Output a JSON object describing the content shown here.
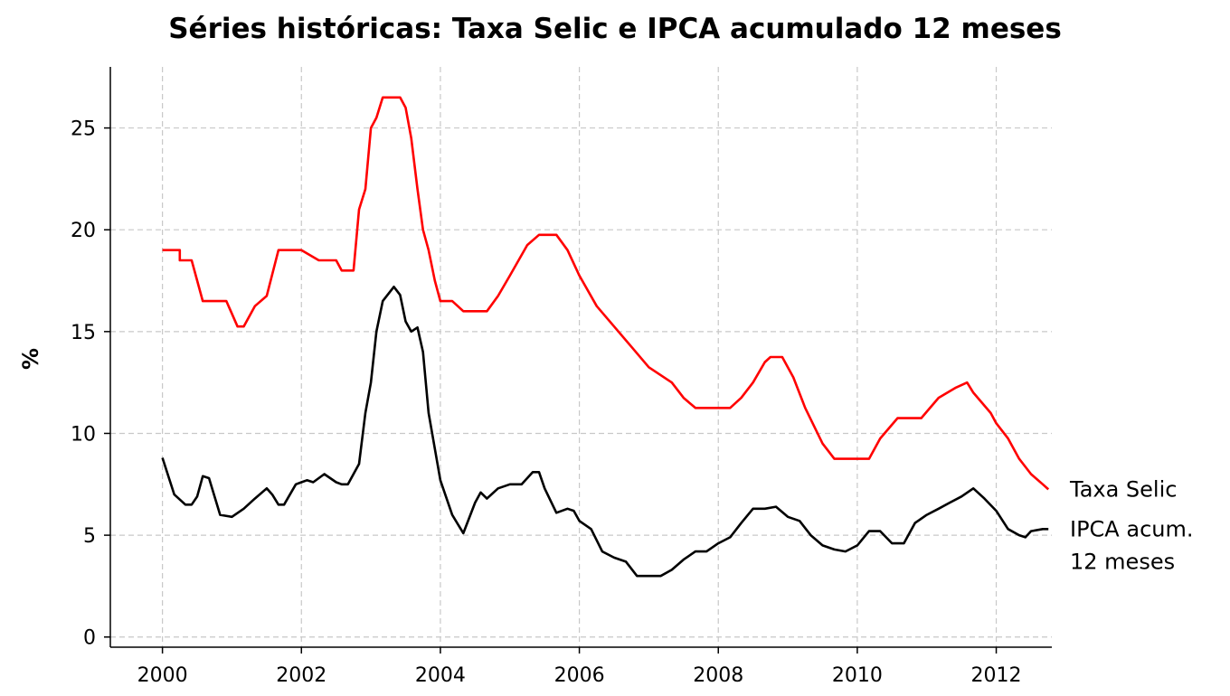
{
  "chart_data": {
    "type": "line",
    "title": "Séries históricas: Taxa Selic e IPCA acumulado 12 meses",
    "xlabel": "",
    "ylabel": "%",
    "xlim": [
      1999.25,
      2012.8
    ],
    "ylim": [
      -0.5,
      28
    ],
    "x_ticks": [
      2000,
      2002,
      2004,
      2006,
      2008,
      2010,
      2012
    ],
    "y_ticks": [
      0,
      5,
      10,
      15,
      20,
      25
    ],
    "grid": true,
    "legend": "end-of-line labels (right)",
    "series": [
      {
        "name": "Taxa Selic",
        "label_lines": [
          "Taxa Selic"
        ],
        "color": "#ff0000",
        "points": [
          [
            2000.0,
            19.0
          ],
          [
            2000.25,
            19.0
          ],
          [
            2000.25,
            18.5
          ],
          [
            2000.42,
            18.5
          ],
          [
            2000.58,
            16.5
          ],
          [
            2000.92,
            16.5
          ],
          [
            2001.08,
            15.25
          ],
          [
            2001.17,
            15.25
          ],
          [
            2001.33,
            16.25
          ],
          [
            2001.5,
            16.75
          ],
          [
            2001.67,
            19.0
          ],
          [
            2002.0,
            19.0
          ],
          [
            2002.25,
            18.5
          ],
          [
            2002.5,
            18.5
          ],
          [
            2002.58,
            18.0
          ],
          [
            2002.75,
            18.0
          ],
          [
            2002.83,
            21.0
          ],
          [
            2002.92,
            22.0
          ],
          [
            2003.0,
            25.0
          ],
          [
            2003.08,
            25.5
          ],
          [
            2003.17,
            26.5
          ],
          [
            2003.42,
            26.5
          ],
          [
            2003.5,
            26.0
          ],
          [
            2003.58,
            24.5
          ],
          [
            2003.67,
            22.0
          ],
          [
            2003.75,
            20.0
          ],
          [
            2003.83,
            19.0
          ],
          [
            2003.92,
            17.5
          ],
          [
            2004.0,
            16.5
          ],
          [
            2004.17,
            16.5
          ],
          [
            2004.33,
            16.0
          ],
          [
            2004.67,
            16.0
          ],
          [
            2004.83,
            16.75
          ],
          [
            2005.0,
            17.75
          ],
          [
            2005.25,
            19.25
          ],
          [
            2005.42,
            19.75
          ],
          [
            2005.67,
            19.75
          ],
          [
            2005.83,
            19.0
          ],
          [
            2006.0,
            17.75
          ],
          [
            2006.25,
            16.25
          ],
          [
            2006.5,
            15.25
          ],
          [
            2006.75,
            14.25
          ],
          [
            2007.0,
            13.25
          ],
          [
            2007.33,
            12.5
          ],
          [
            2007.5,
            11.75
          ],
          [
            2007.67,
            11.25
          ],
          [
            2008.17,
            11.25
          ],
          [
            2008.33,
            11.75
          ],
          [
            2008.5,
            12.5
          ],
          [
            2008.67,
            13.5
          ],
          [
            2008.75,
            13.75
          ],
          [
            2008.92,
            13.75
          ],
          [
            2009.08,
            12.75
          ],
          [
            2009.25,
            11.25
          ],
          [
            2009.5,
            9.5
          ],
          [
            2009.67,
            8.75
          ],
          [
            2010.17,
            8.75
          ],
          [
            2010.33,
            9.75
          ],
          [
            2010.58,
            10.75
          ],
          [
            2010.92,
            10.75
          ],
          [
            2011.17,
            11.75
          ],
          [
            2011.42,
            12.25
          ],
          [
            2011.58,
            12.5
          ],
          [
            2011.67,
            12.0
          ],
          [
            2011.92,
            11.0
          ],
          [
            2012.0,
            10.5
          ],
          [
            2012.17,
            9.75
          ],
          [
            2012.33,
            8.75
          ],
          [
            2012.5,
            8.0
          ],
          [
            2012.67,
            7.5
          ],
          [
            2012.75,
            7.25
          ]
        ]
      },
      {
        "name": "IPCA acum. 12 meses",
        "label_lines": [
          "IPCA acum.",
          "12 meses"
        ],
        "color": "#000000",
        "points": [
          [
            2000.0,
            8.8
          ],
          [
            2000.17,
            7.0
          ],
          [
            2000.33,
            6.5
          ],
          [
            2000.42,
            6.5
          ],
          [
            2000.5,
            6.9
          ],
          [
            2000.58,
            7.9
          ],
          [
            2000.67,
            7.8
          ],
          [
            2000.83,
            6.0
          ],
          [
            2001.0,
            5.9
          ],
          [
            2001.17,
            6.3
          ],
          [
            2001.33,
            6.8
          ],
          [
            2001.5,
            7.3
          ],
          [
            2001.58,
            7.0
          ],
          [
            2001.67,
            6.5
          ],
          [
            2001.75,
            6.5
          ],
          [
            2001.92,
            7.5
          ],
          [
            2002.0,
            7.6
          ],
          [
            2002.08,
            7.7
          ],
          [
            2002.17,
            7.6
          ],
          [
            2002.33,
            8.0
          ],
          [
            2002.5,
            7.6
          ],
          [
            2002.58,
            7.5
          ],
          [
            2002.67,
            7.5
          ],
          [
            2002.83,
            8.5
          ],
          [
            2002.92,
            11.0
          ],
          [
            2003.0,
            12.5
          ],
          [
            2003.08,
            15.0
          ],
          [
            2003.17,
            16.5
          ],
          [
            2003.33,
            17.2
          ],
          [
            2003.42,
            16.8
          ],
          [
            2003.5,
            15.5
          ],
          [
            2003.58,
            15.0
          ],
          [
            2003.67,
            15.2
          ],
          [
            2003.75,
            14.0
          ],
          [
            2003.83,
            11.0
          ],
          [
            2004.0,
            7.7
          ],
          [
            2004.17,
            6.0
          ],
          [
            2004.33,
            5.1
          ],
          [
            2004.5,
            6.6
          ],
          [
            2004.58,
            7.1
          ],
          [
            2004.67,
            6.8
          ],
          [
            2004.83,
            7.3
          ],
          [
            2005.0,
            7.5
          ],
          [
            2005.17,
            7.5
          ],
          [
            2005.33,
            8.1
          ],
          [
            2005.42,
            8.1
          ],
          [
            2005.5,
            7.3
          ],
          [
            2005.67,
            6.1
          ],
          [
            2005.83,
            6.3
          ],
          [
            2005.92,
            6.2
          ],
          [
            2006.0,
            5.7
          ],
          [
            2006.17,
            5.3
          ],
          [
            2006.33,
            4.2
          ],
          [
            2006.5,
            3.9
          ],
          [
            2006.67,
            3.7
          ],
          [
            2006.83,
            3.0
          ],
          [
            2007.0,
            3.0
          ],
          [
            2007.17,
            3.0
          ],
          [
            2007.33,
            3.3
          ],
          [
            2007.5,
            3.8
          ],
          [
            2007.67,
            4.2
          ],
          [
            2007.83,
            4.2
          ],
          [
            2008.0,
            4.6
          ],
          [
            2008.17,
            4.9
          ],
          [
            2008.33,
            5.6
          ],
          [
            2008.5,
            6.3
          ],
          [
            2008.67,
            6.3
          ],
          [
            2008.83,
            6.4
          ],
          [
            2009.0,
            5.9
          ],
          [
            2009.17,
            5.7
          ],
          [
            2009.33,
            5.0
          ],
          [
            2009.5,
            4.5
          ],
          [
            2009.67,
            4.3
          ],
          [
            2009.83,
            4.2
          ],
          [
            2010.0,
            4.5
          ],
          [
            2010.17,
            5.2
          ],
          [
            2010.33,
            5.2
          ],
          [
            2010.5,
            4.6
          ],
          [
            2010.67,
            4.6
          ],
          [
            2010.83,
            5.6
          ],
          [
            2011.0,
            6.0
          ],
          [
            2011.17,
            6.3
          ],
          [
            2011.33,
            6.6
          ],
          [
            2011.5,
            6.9
          ],
          [
            2011.67,
            7.3
          ],
          [
            2011.83,
            6.8
          ],
          [
            2012.0,
            6.2
          ],
          [
            2012.17,
            5.3
          ],
          [
            2012.33,
            5.0
          ],
          [
            2012.42,
            4.9
          ],
          [
            2012.5,
            5.2
          ],
          [
            2012.67,
            5.3
          ],
          [
            2012.75,
            5.3
          ]
        ]
      }
    ]
  }
}
